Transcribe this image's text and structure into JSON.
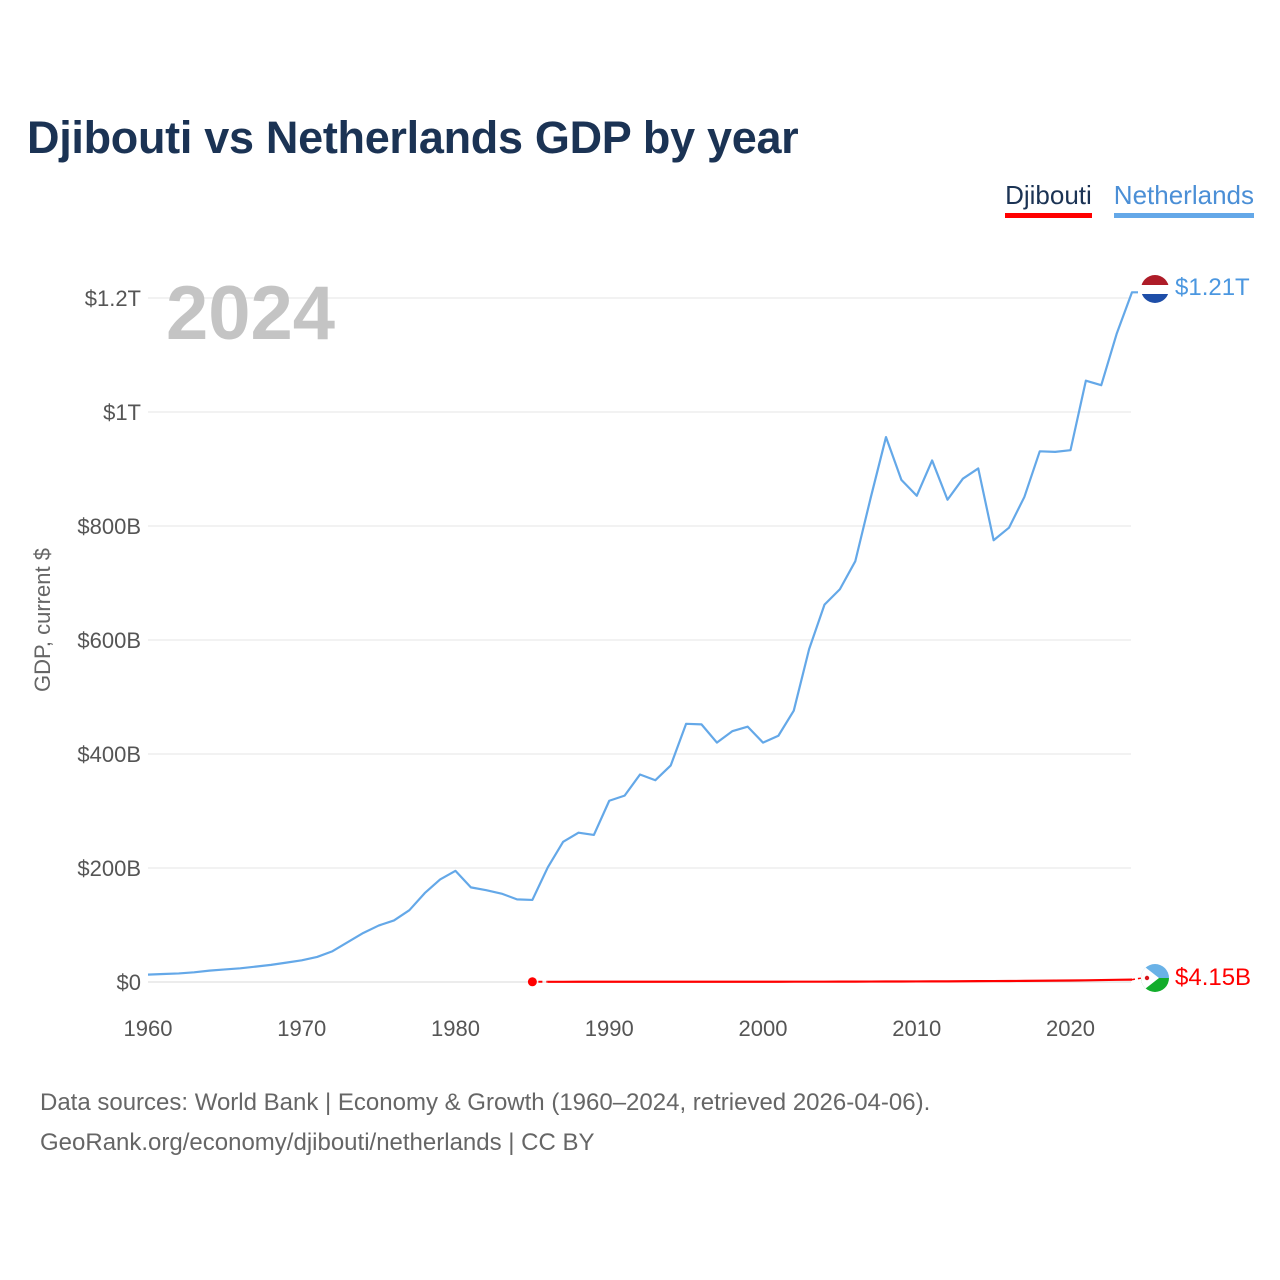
{
  "title": "Djibouti vs Netherlands GDP by year",
  "legend": [
    {
      "name": "Djibouti",
      "color": "#ff0000"
    },
    {
      "name": "Netherlands",
      "color": "#64a8e8"
    }
  ],
  "year_label": "2024",
  "footer": {
    "line1": "Data sources: World Bank | Economy & Growth (1960–2024, retrieved 2026-04-06).",
    "line2": "GeoRank.org/economy/djibouti/netherlands | CC BY"
  },
  "chart_data": {
    "type": "line",
    "title": "Djibouti vs Netherlands GDP by year",
    "xlabel": "",
    "ylabel": "GDP, current $",
    "xlim": [
      1960,
      2024
    ],
    "ylim": [
      0,
      1200
    ],
    "unit": "billions of current US$",
    "yticks": [
      {
        "value": 0,
        "label": "$0"
      },
      {
        "value": 200,
        "label": "$200B"
      },
      {
        "value": 400,
        "label": "$400B"
      },
      {
        "value": 600,
        "label": "$600B"
      },
      {
        "value": 800,
        "label": "$800B"
      },
      {
        "value": 1000,
        "label": "$1T"
      },
      {
        "value": 1200,
        "label": "$1.2T"
      }
    ],
    "xticks": [
      {
        "value": 1960,
        "label": "1960"
      },
      {
        "value": 1970,
        "label": "1970"
      },
      {
        "value": 1980,
        "label": "1980"
      },
      {
        "value": 1990,
        "label": "1990"
      },
      {
        "value": 2000,
        "label": "2000"
      },
      {
        "value": 2010,
        "label": "2010"
      },
      {
        "value": 2020,
        "label": "2020"
      }
    ],
    "grid": true,
    "series": [
      {
        "name": "Netherlands",
        "color": "#64a8e8",
        "end_label": "$1.21T",
        "x": [
          1960,
          1961,
          1962,
          1963,
          1964,
          1965,
          1966,
          1967,
          1968,
          1969,
          1970,
          1971,
          1972,
          1973,
          1974,
          1975,
          1976,
          1977,
          1978,
          1979,
          1980,
          1981,
          1982,
          1983,
          1984,
          1985,
          1986,
          1987,
          1988,
          1989,
          1990,
          1991,
          1992,
          1993,
          1994,
          1995,
          1996,
          1997,
          1998,
          1999,
          2000,
          2001,
          2002,
          2003,
          2004,
          2005,
          2006,
          2007,
          2008,
          2009,
          2010,
          2011,
          2012,
          2013,
          2014,
          2015,
          2016,
          2017,
          2018,
          2019,
          2020,
          2021,
          2022,
          2023,
          2024
        ],
        "values": [
          13,
          14,
          15,
          17,
          20,
          22,
          24,
          27,
          30,
          34,
          38,
          44,
          54,
          70,
          86,
          99,
          108,
          126,
          156,
          180,
          195,
          166,
          161,
          155,
          145,
          144,
          201,
          246,
          262,
          258,
          318,
          327,
          364,
          354,
          380,
          453,
          452,
          420,
          440,
          448,
          420,
          432,
          476,
          584,
          662,
          689,
          738,
          849,
          956,
          881,
          853,
          915,
          846,
          883,
          901,
          775,
          797,
          851,
          931,
          930,
          933,
          1055,
          1047,
          1137,
          1210
        ]
      },
      {
        "name": "Djibouti",
        "color": "#ff0000",
        "end_label": "$4.15B",
        "x": [
          1985,
          1986,
          1987,
          1988,
          1989,
          1990,
          1991,
          1992,
          1993,
          1994,
          1995,
          1996,
          1997,
          1998,
          1999,
          2000,
          2001,
          2002,
          2003,
          2004,
          2005,
          2006,
          2007,
          2008,
          2009,
          2010,
          2011,
          2012,
          2013,
          2014,
          2015,
          2016,
          2017,
          2018,
          2019,
          2020,
          2021,
          2022,
          2023,
          2024
        ],
        "values": [
          0.34,
          0.35,
          0.36,
          0.38,
          0.39,
          0.41,
          0.42,
          0.44,
          0.44,
          0.44,
          0.45,
          0.44,
          0.44,
          0.45,
          0.47,
          0.48,
          0.49,
          0.51,
          0.54,
          0.57,
          0.61,
          0.65,
          0.73,
          0.85,
          0.93,
          1.0,
          1.07,
          1.15,
          1.35,
          1.48,
          1.61,
          1.78,
          1.98,
          2.24,
          2.45,
          2.66,
          2.99,
          3.38,
          3.8,
          4.15
        ]
      }
    ]
  }
}
